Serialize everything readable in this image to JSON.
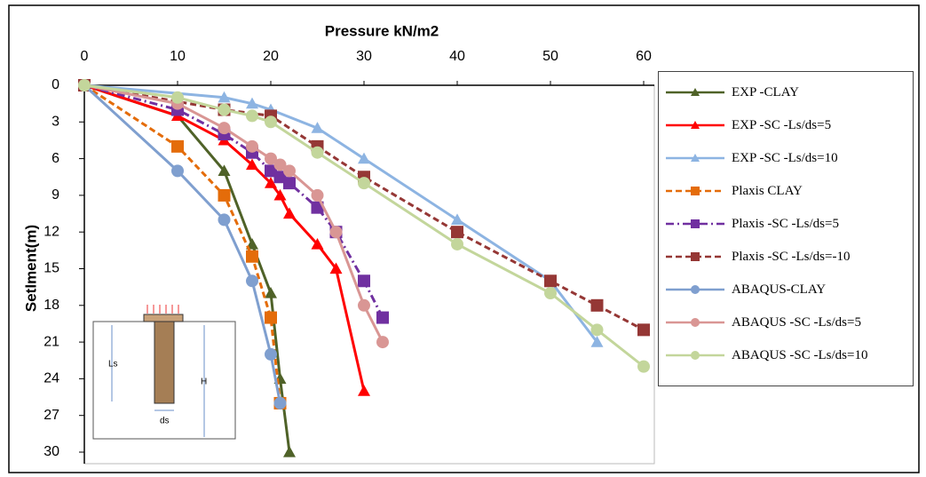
{
  "chart_data": {
    "type": "line",
    "x_label": "Pressure kN/m2",
    "y_label": "Setlment(m)",
    "xlim": [
      0,
      60
    ],
    "xticks": [
      0,
      10,
      20,
      30,
      40,
      50,
      60
    ],
    "ylim": [
      0,
      30
    ],
    "yticks": [
      0,
      3,
      6,
      9,
      12,
      15,
      18,
      21,
      24,
      27,
      30
    ],
    "y_inverted": true,
    "x_axis_position": "top",
    "grid": false,
    "legend": "right",
    "annotations": [
      "Ls",
      "H",
      "ds"
    ],
    "series": [
      {
        "name": "EXP -CLAY",
        "color": "#4f6228",
        "marker": "triangle",
        "line_style": "solid",
        "x": [
          0,
          10,
          15,
          18,
          20,
          21,
          22
        ],
        "values": [
          0,
          2.5,
          7,
          13,
          17,
          24,
          30
        ]
      },
      {
        "name": "EXP -SC -Ls/ds=5",
        "color": "#ff0000",
        "marker": "triangle",
        "line_style": "solid",
        "x": [
          0,
          10,
          15,
          18,
          20,
          21,
          22,
          25,
          27,
          30
        ],
        "values": [
          0,
          2.5,
          4.5,
          6.5,
          8,
          9,
          10.5,
          13,
          15,
          25
        ]
      },
      {
        "name": "EXP -SC -Ls/ds=10",
        "color": "#8db4e2",
        "marker": "triangle",
        "line_style": "solid",
        "x": [
          0,
          15,
          18,
          20,
          25,
          30,
          40,
          50,
          55
        ],
        "values": [
          0,
          1,
          1.5,
          2,
          3.5,
          6,
          11,
          16,
          21
        ]
      },
      {
        "name": "Plaxis CLAY",
        "color": "#e46c0a",
        "marker": "square",
        "line_style": "dashed",
        "x": [
          0,
          10,
          15,
          18,
          20,
          21
        ],
        "values": [
          0,
          5,
          9,
          14,
          19,
          26
        ]
      },
      {
        "name": "Plaxis -SC -Ls/ds=5",
        "color": "#7030a0",
        "marker": "square",
        "line_style": "dashdot",
        "x": [
          0,
          10,
          15,
          18,
          20,
          21,
          22,
          25,
          27,
          30,
          32
        ],
        "values": [
          0,
          2,
          4,
          5.5,
          7,
          7.5,
          8,
          10,
          12,
          16,
          19
        ]
      },
      {
        "name": "Plaxis -SC -Ls/ds=-10",
        "color": "#953735",
        "marker": "square",
        "line_style": "dashed",
        "x": [
          0,
          15,
          20,
          25,
          30,
          40,
          50,
          55,
          60
        ],
        "values": [
          0,
          2,
          2.5,
          5,
          7.5,
          12,
          16,
          18,
          20
        ]
      },
      {
        "name": "ABAQUS-CLAY",
        "color": "#7f9fcf",
        "marker": "circle",
        "line_style": "solid",
        "x": [
          0,
          10,
          15,
          18,
          20,
          21
        ],
        "values": [
          0,
          7,
          11,
          16,
          22,
          26
        ]
      },
      {
        "name": "ABAQUS -SC -Ls/ds=5",
        "color": "#d99694",
        "marker": "circle",
        "line_style": "solid",
        "x": [
          0,
          10,
          15,
          18,
          20,
          21,
          22,
          25,
          27,
          30,
          32
        ],
        "values": [
          0,
          1.5,
          3.5,
          5,
          6,
          6.5,
          7,
          9,
          12,
          18,
          21
        ]
      },
      {
        "name": "ABAQUS -SC -Ls/ds=10",
        "color": "#c3d69b",
        "marker": "circle",
        "line_style": "solid",
        "x": [
          0,
          10,
          15,
          18,
          20,
          25,
          30,
          40,
          50,
          55,
          60
        ],
        "values": [
          0,
          1,
          2,
          2.5,
          3,
          5.5,
          8,
          13,
          17,
          20,
          23
        ]
      }
    ]
  }
}
